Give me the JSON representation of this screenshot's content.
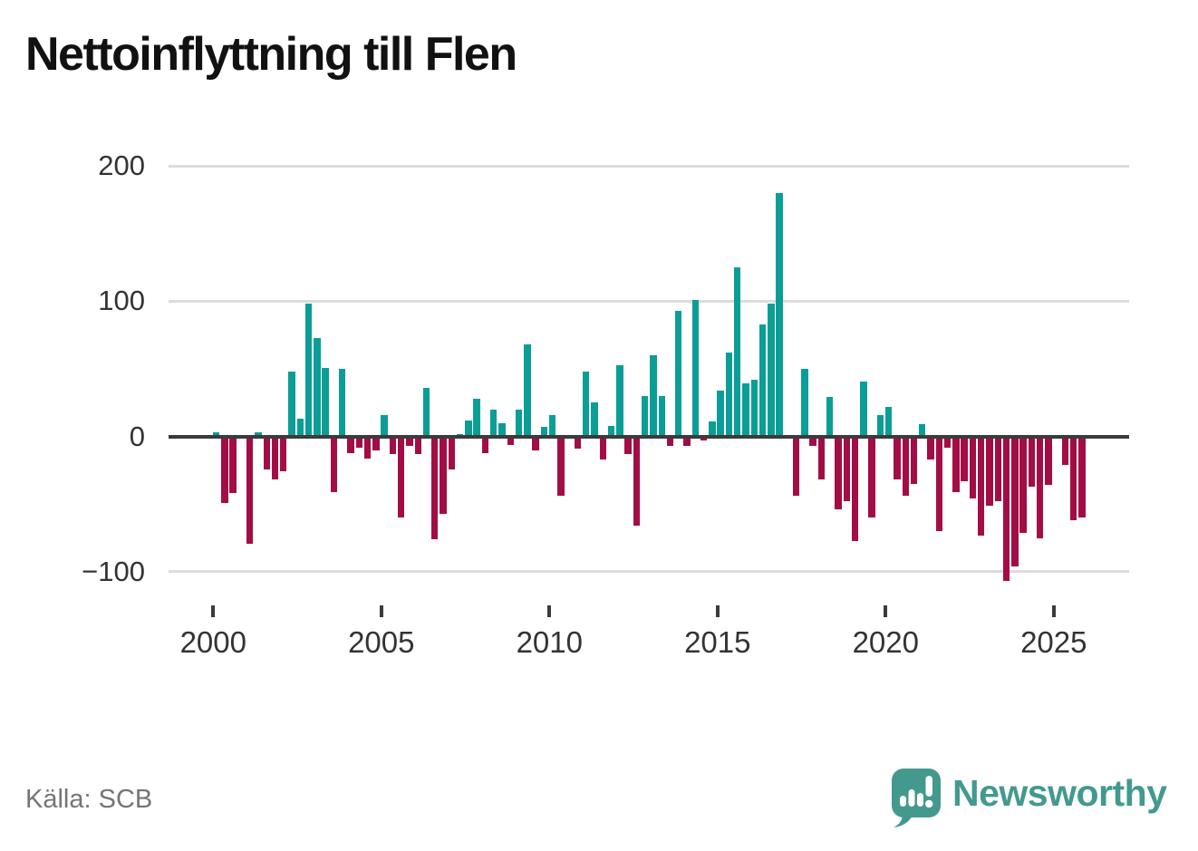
{
  "title": "Nettoinflyttning till Flen",
  "source": "Källa: SCB",
  "branding": {
    "name": "Newsworthy"
  },
  "colors": {
    "background": "#ffffff",
    "title": "#111111",
    "positive": "#0a9e96",
    "negative": "#a30d45",
    "axis": "#3b3b3b",
    "grid": "#dcdcdc",
    "tick_label": "#333333",
    "source_text": "#757575",
    "brand_teal": "#44998f"
  },
  "chart_data": {
    "type": "bar",
    "title": "Nettoinflyttning till Flen",
    "frequency": "quarterly",
    "start": "2000-Q1",
    "end": "2025-Q4",
    "grid": "horizontal",
    "legend": "none",
    "ylim": [
      -130,
      215
    ],
    "y_tick_values": [
      200,
      100,
      0,
      -100
    ],
    "y_tick_labels": [
      "200",
      "100",
      "0",
      "−100"
    ],
    "x_tick_labels": [
      "2000",
      "2005",
      "2010",
      "2015",
      "2020",
      "2025"
    ],
    "values_by_year": {
      "2000": [
        3,
        -49,
        -42,
        0
      ],
      "2001": [
        -79,
        3,
        -24,
        -32
      ],
      "2002": [
        -26,
        48,
        13,
        98
      ],
      "2003": [
        73,
        51,
        -41,
        50
      ],
      "2004": [
        -12,
        -8,
        -16,
        -10
      ],
      "2005": [
        16,
        -13,
        -60,
        -7
      ],
      "2006": [
        -13,
        36,
        -76,
        -57
      ],
      "2007": [
        -24,
        2,
        12,
        28
      ],
      "2008": [
        -12,
        20,
        10,
        -6
      ],
      "2009": [
        20,
        68,
        -10,
        7
      ],
      "2010": [
        16,
        -44,
        0,
        -9
      ],
      "2011": [
        48,
        25,
        -17,
        8
      ],
      "2012": [
        53,
        -13,
        -66,
        30
      ],
      "2013": [
        60,
        30,
        -7,
        93
      ],
      "2014": [
        -7,
        101,
        -3,
        11
      ],
      "2015": [
        34,
        62,
        125,
        39
      ],
      "2016": [
        42,
        83,
        98,
        180
      ],
      "2017": [
        0,
        -44,
        50,
        -7
      ],
      "2018": [
        -32,
        29,
        -54,
        -48
      ],
      "2019": [
        -77,
        41,
        -60,
        16
      ],
      "2020": [
        22,
        -32,
        -44,
        -35
      ],
      "2021": [
        9,
        -17,
        -70,
        -8
      ],
      "2022": [
        -41,
        -33,
        -46,
        -73
      ],
      "2023": [
        -51,
        -48,
        -107,
        -96
      ],
      "2024": [
        -71,
        -37,
        -75,
        -36
      ],
      "2025": [
        0,
        -21,
        -62,
        -60
      ]
    }
  }
}
